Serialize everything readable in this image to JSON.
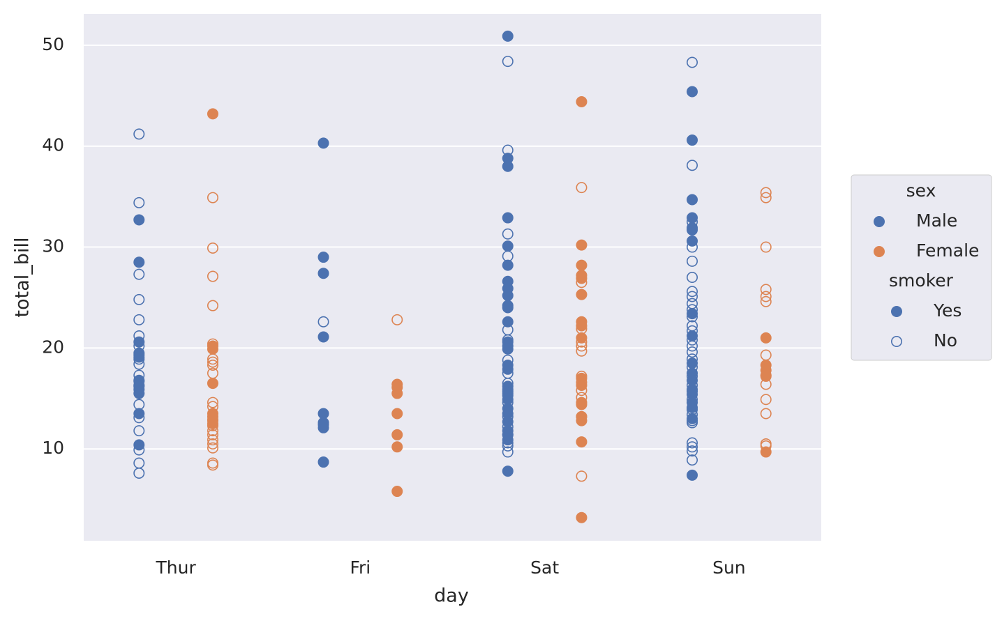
{
  "chart_data": {
    "type": "strip",
    "xlabel": "day",
    "ylabel": "total_bill",
    "categories": [
      "Thur",
      "Fri",
      "Sat",
      "Sun"
    ],
    "ylim": [
      0.9,
      53.1
    ],
    "yticks": [
      10,
      20,
      30,
      40,
      50
    ],
    "grid": true,
    "legend_loc": "center right",
    "legend": [
      {
        "title": "sex",
        "entries": [
          "Male",
          "Female"
        ]
      },
      {
        "title": "smoker",
        "entries": [
          "Yes",
          "No"
        ]
      }
    ],
    "hue_colors": [
      "#4c72b0",
      "#dd8452"
    ],
    "series": [
      {
        "sex": "Male",
        "smoker": "Yes",
        "values": [
          [
            32.7,
            28.5,
            20.6,
            19.5,
            19.1,
            16.8,
            16.3,
            15.9,
            15.5,
            13.5,
            10.4
          ],
          [
            40.3,
            29.0,
            27.4,
            21.1,
            13.5,
            12.6,
            12.1,
            8.7
          ],
          [
            50.9,
            38.8,
            38.0,
            32.9,
            30.1,
            28.2,
            26.6,
            25.9,
            25.2,
            24.2,
            24.0,
            22.6,
            20.6,
            20.2,
            19.9,
            18.3,
            17.9,
            16.2,
            15.7,
            15.3,
            14.9,
            14.0,
            13.5,
            12.7,
            11.8,
            11.4,
            10.9,
            7.8
          ],
          [
            45.4,
            40.6,
            34.7,
            32.9,
            31.9,
            31.7,
            30.6,
            23.4,
            21.2,
            18.5,
            17.5,
            16.8,
            15.9,
            15.4,
            14.6,
            14.1,
            13.0,
            7.4
          ]
        ]
      },
      {
        "sex": "Male",
        "smoker": "No",
        "values": [
          [
            41.2,
            34.4,
            27.3,
            24.8,
            22.8,
            21.2,
            20.2,
            19.3,
            18.9,
            18.4,
            17.3,
            16.7,
            16.2,
            14.4,
            13.1,
            11.8,
            9.9,
            8.6,
            7.6
          ],
          [
            22.6,
            12.4
          ],
          [
            48.4,
            39.6,
            31.3,
            29.1,
            21.8,
            20.8,
            18.8,
            17.5,
            16.5,
            15.9,
            15.5,
            14.6,
            13.2,
            12.2,
            11.4,
            10.6,
            10.3,
            9.7
          ],
          [
            48.3,
            38.1,
            32.5,
            30.0,
            28.6,
            27.0,
            25.6,
            25.1,
            24.4,
            23.8,
            23.1,
            22.2,
            21.7,
            20.8,
            20.2,
            19.6,
            18.9,
            18.1,
            17.2,
            16.3,
            15.7,
            14.9,
            13.9,
            13.4,
            12.8,
            12.6,
            10.6,
            10.2,
            9.8,
            8.9
          ]
        ]
      },
      {
        "sex": "Female",
        "smoker": "Yes",
        "values": [
          [
            43.2,
            20.2,
            19.9,
            16.5,
            13.5,
            12.9,
            12.5
          ],
          [
            16.4,
            16.1,
            15.5,
            13.5,
            11.4,
            10.2,
            5.8
          ],
          [
            44.4,
            30.2,
            28.2,
            27.2,
            26.9,
            25.3,
            22.6,
            22.2,
            21.0,
            17.0,
            16.3,
            14.6,
            14.4,
            13.2,
            12.8,
            10.7,
            3.2
          ],
          [
            21.0,
            18.3,
            17.8,
            17.3,
            9.7
          ]
        ]
      },
      {
        "sex": "Female",
        "smoker": "No",
        "values": [
          [
            34.9,
            29.9,
            27.1,
            24.2,
            20.4,
            18.9,
            18.6,
            18.3,
            17.5,
            14.6,
            14.2,
            13.2,
            12.8,
            12.3,
            11.8,
            11.4,
            10.9,
            10.5,
            10.1,
            8.6,
            8.4
          ],
          [
            22.8
          ],
          [
            35.9,
            26.5,
            21.9,
            20.6,
            20.2,
            19.7,
            17.2,
            16.6,
            15.8,
            15.1,
            13.2,
            7.3
          ],
          [
            35.4,
            34.9,
            30.0,
            25.8,
            25.1,
            24.6,
            19.3,
            17.2,
            16.4,
            14.9,
            13.5,
            10.5,
            10.3
          ]
        ]
      }
    ]
  }
}
